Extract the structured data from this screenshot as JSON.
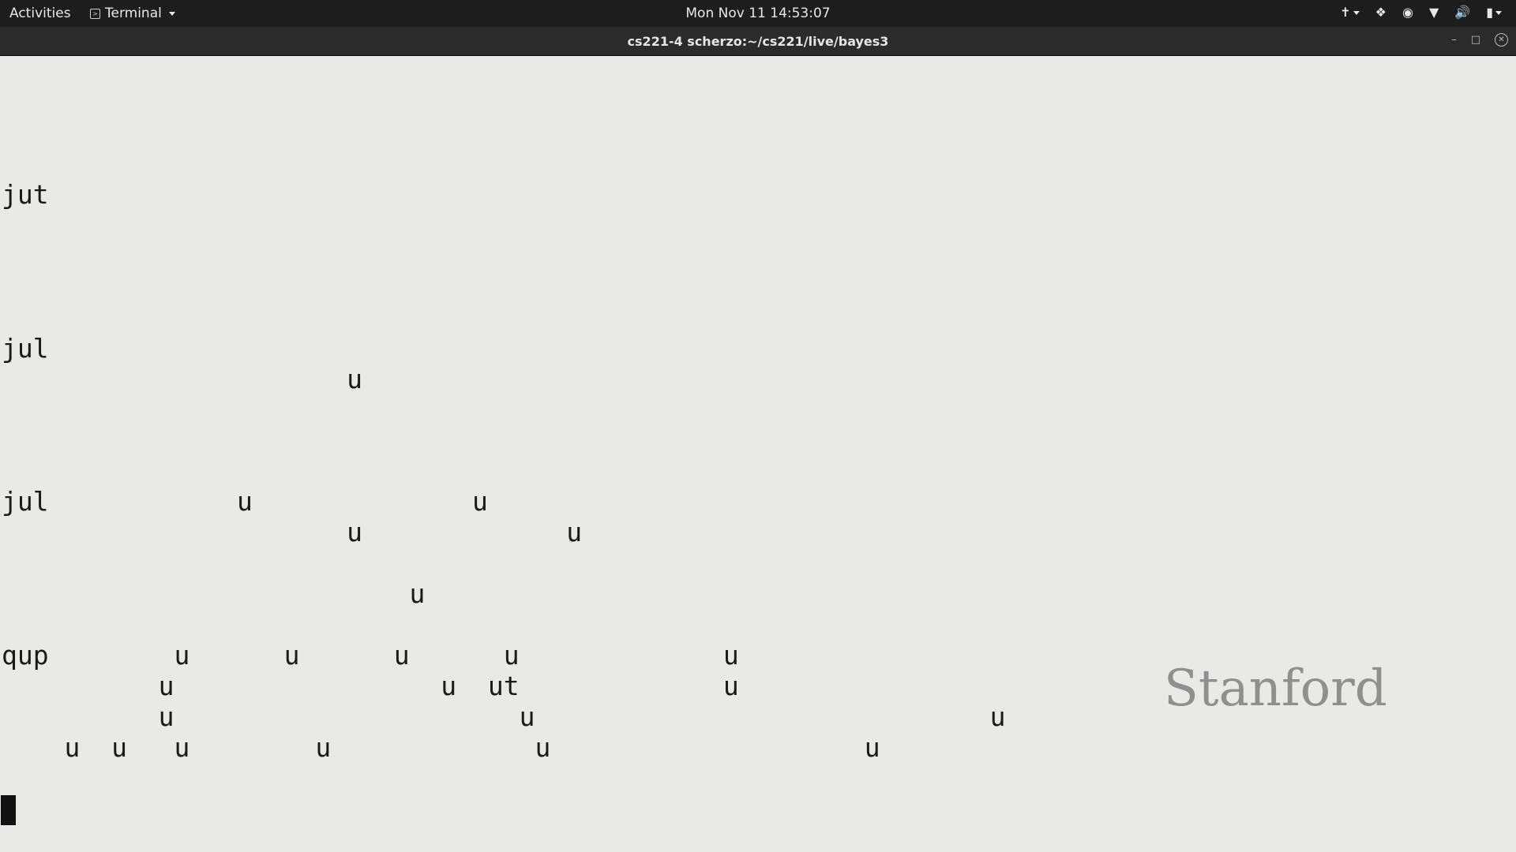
{
  "top_bar": {
    "activities_label": "Activities",
    "app_menu_label": "Terminal",
    "clock": "Mon Nov 11  14:53:07",
    "tray_icons": [
      "accessibility-icon",
      "dropbox-icon",
      "app-indicator-icon",
      "wifi-icon",
      "volume-icon",
      "battery-icon"
    ]
  },
  "window": {
    "title": "cs221-4 scherzo:~/cs221/live/bayes3"
  },
  "terminal": {
    "lines": [
      "",
      "",
      "",
      "jut",
      "",
      "",
      "",
      "",
      "jul",
      "                      u",
      "",
      "",
      "jul            u              u",
      "                      u             u",
      "",
      "                          u",
      "qup        u      u      u      u             u",
      "          u                 u  ut             u",
      "          u                      u                             u",
      "    u  u   u        u             u                    u",
      "",
      ""
    ]
  },
  "watermark": "Stanford"
}
